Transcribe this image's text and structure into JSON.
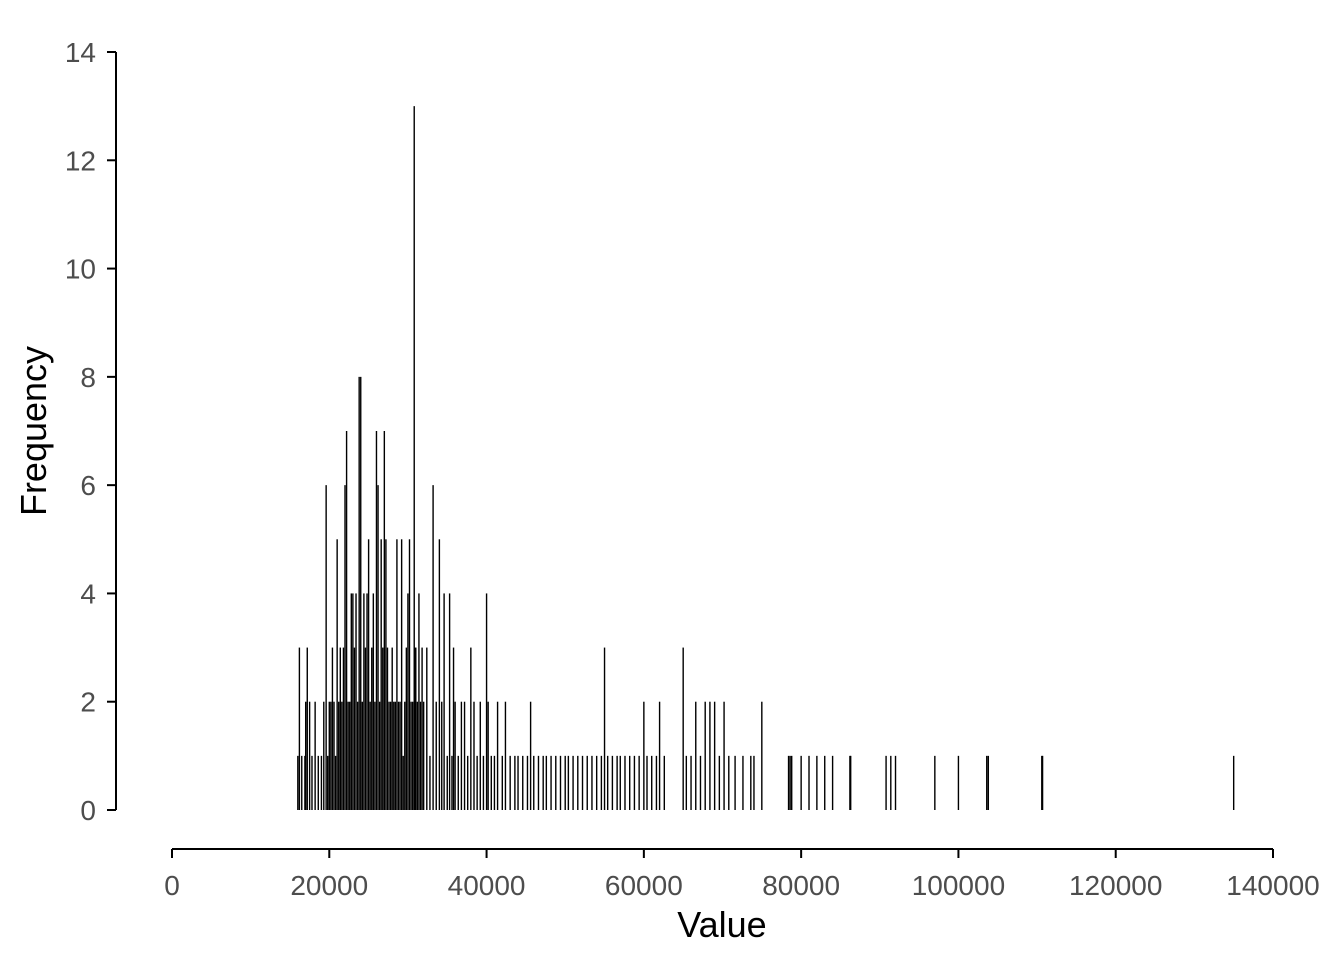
{
  "chart_data": {
    "type": "bar",
    "xlabel": "Value",
    "ylabel": "Frequency",
    "xlim": [
      0,
      140000
    ],
    "ylim": [
      0,
      14
    ],
    "x_ticks": [
      "0",
      "20000",
      "40000",
      "60000",
      "80000",
      "100000",
      "120000",
      "140000"
    ],
    "y_ticks": [
      "0",
      "2",
      "4",
      "6",
      "8",
      "10",
      "12",
      "14"
    ],
    "grid": false,
    "legend": "none",
    "bar_color": "#000000",
    "x": [
      16000,
      16200,
      16500,
      16900,
      17000,
      17200,
      17500,
      17800,
      18200,
      18600,
      19000,
      19300,
      19600,
      19800,
      20000,
      20200,
      20400,
      20600,
      20800,
      21000,
      21200,
      21400,
      21600,
      21800,
      22000,
      22200,
      22400,
      22600,
      22800,
      23000,
      23200,
      23400,
      23600,
      23800,
      24000,
      24200,
      24400,
      24600,
      24800,
      25000,
      25200,
      25400,
      25600,
      25800,
      26000,
      26200,
      26400,
      26600,
      26800,
      27000,
      27200,
      27400,
      27600,
      27800,
      28000,
      28200,
      28400,
      28600,
      28800,
      29000,
      29200,
      29400,
      29600,
      29800,
      30000,
      30200,
      30400,
      30600,
      30800,
      30900,
      31000,
      31200,
      31400,
      31600,
      31800,
      32000,
      32400,
      32800,
      33200,
      33600,
      34000,
      34300,
      34600,
      35000,
      35300,
      35600,
      35800,
      36000,
      36400,
      36800,
      37200,
      37600,
      38000,
      38400,
      38800,
      39200,
      39600,
      40000,
      40200,
      40600,
      41000,
      41400,
      42000,
      42400,
      43000,
      43600,
      44000,
      44600,
      45200,
      45600,
      46000,
      46600,
      47200,
      47600,
      48200,
      48800,
      49400,
      50000,
      50400,
      51000,
      51600,
      52200,
      52800,
      53400,
      54000,
      54600,
      55000,
      55400,
      56000,
      56600,
      57000,
      57600,
      58200,
      58800,
      59400,
      60000,
      60400,
      61000,
      61600,
      62000,
      62600,
      65000,
      65400,
      66000,
      66600,
      67200,
      67800,
      68400,
      69000,
      69600,
      70200,
      70800,
      71600,
      72600,
      73600,
      74000,
      75000,
      78400,
      78600,
      78800,
      80000,
      81000,
      82000,
      83000,
      84000,
      86200,
      86300,
      90800,
      91400,
      92000,
      97000,
      100000,
      103600,
      103800,
      110600,
      110700,
      135000
    ],
    "values": [
      1,
      3,
      1,
      1,
      2,
      3,
      2,
      1,
      2,
      1,
      1,
      2,
      6,
      1,
      2,
      2,
      3,
      2,
      1,
      5,
      2,
      3,
      2,
      3,
      6,
      7,
      2,
      2,
      4,
      4,
      3,
      4,
      2,
      8,
      8,
      2,
      4,
      3,
      4,
      5,
      2,
      3,
      4,
      2,
      7,
      6,
      2,
      5,
      3,
      7,
      5,
      3,
      2,
      2,
      3,
      2,
      2,
      5,
      2,
      2,
      5,
      1,
      2,
      3,
      4,
      5,
      2,
      2,
      13,
      3,
      3,
      2,
      4,
      2,
      3,
      2,
      3,
      1,
      6,
      2,
      5,
      2,
      4,
      1,
      4,
      1,
      3,
      2,
      1,
      2,
      2,
      1,
      3,
      2,
      1,
      2,
      1,
      4,
      2,
      1,
      1,
      2,
      1,
      2,
      1,
      1,
      1,
      1,
      1,
      2,
      1,
      1,
      1,
      1,
      1,
      1,
      1,
      1,
      1,
      1,
      1,
      1,
      1,
      1,
      1,
      1,
      3,
      1,
      1,
      1,
      1,
      1,
      1,
      1,
      1,
      2,
      1,
      1,
      1,
      2,
      1,
      3,
      1,
      1,
      2,
      1,
      2,
      2,
      2,
      1,
      2,
      1,
      1,
      1,
      1,
      1,
      2,
      1,
      1,
      1,
      1,
      1,
      1,
      1,
      1,
      1,
      1,
      1,
      1,
      1,
      1,
      1,
      1,
      1,
      1,
      1,
      1
    ]
  }
}
